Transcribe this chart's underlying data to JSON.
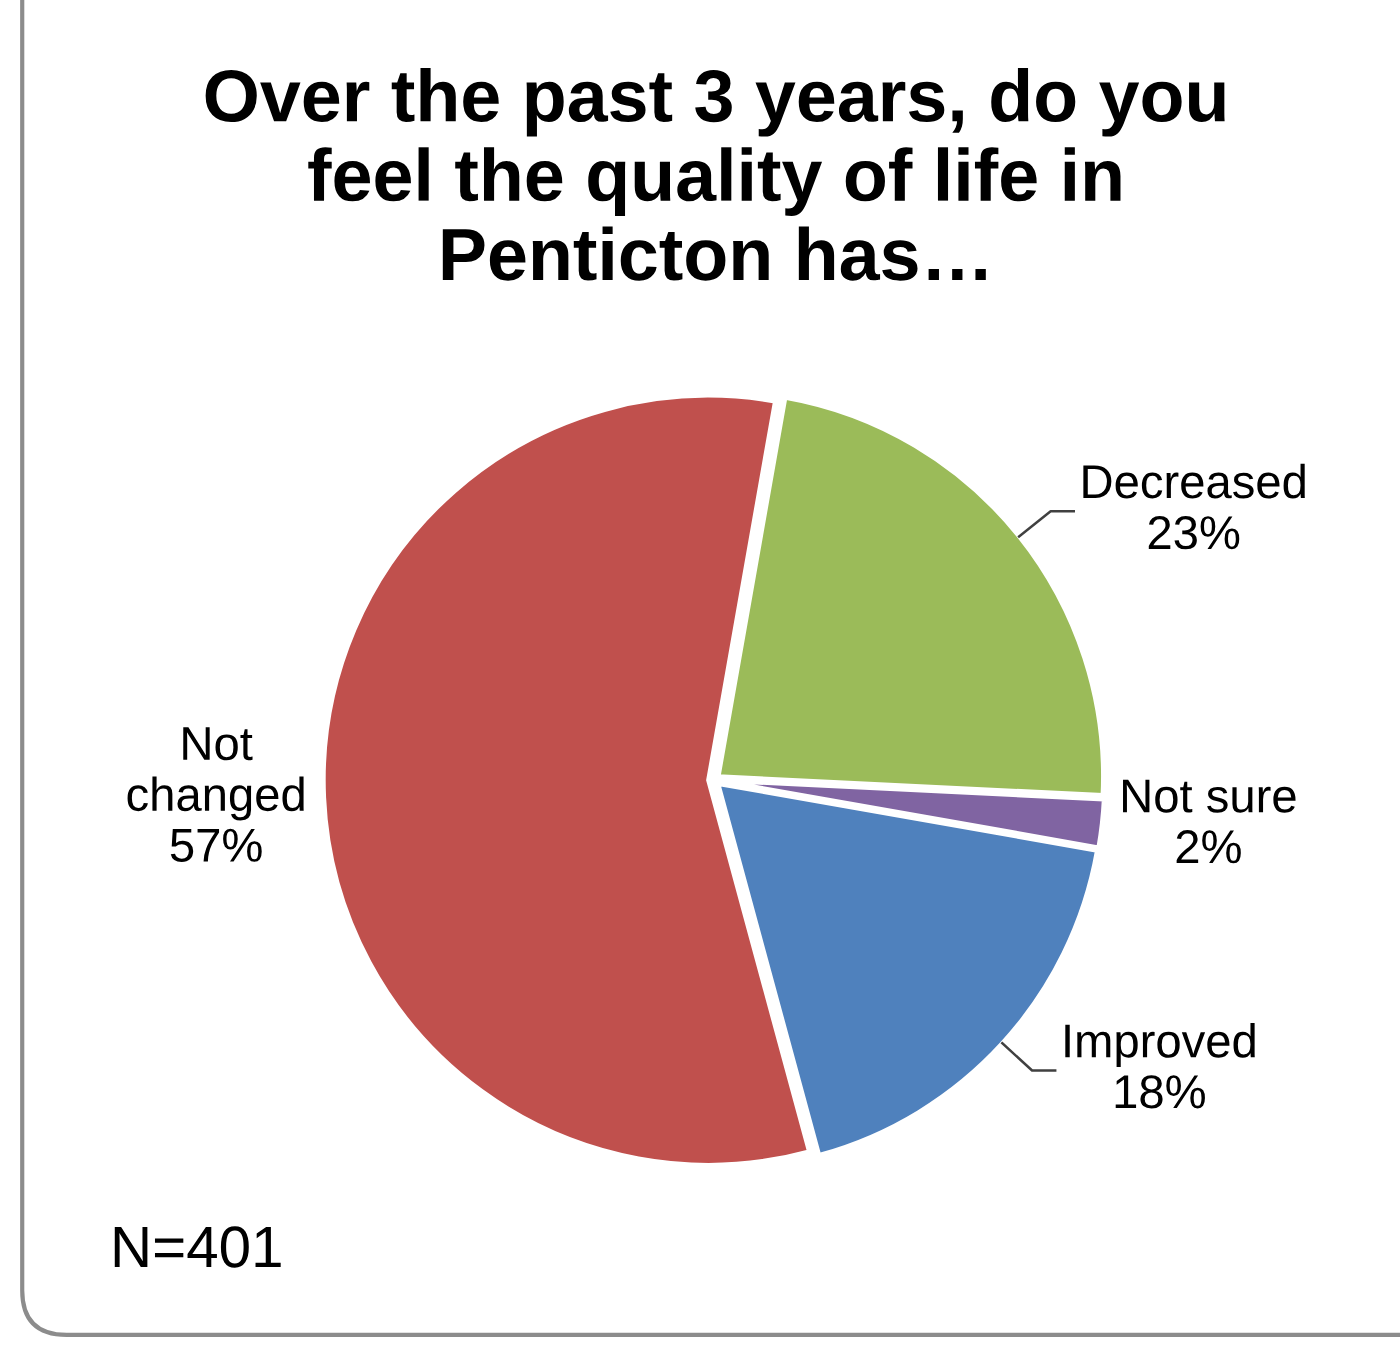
{
  "chart_data": {
    "type": "pie",
    "title": "Over the past 3 years, do you feel the quality of life in Penticton has…",
    "categories": [
      "Decreased",
      "Not sure",
      "Improved",
      "Not changed"
    ],
    "values": [
      23,
      2,
      18,
      57
    ],
    "colors": [
      "#9bbb59",
      "#8064a2",
      "#4f81bd",
      "#c0504d"
    ],
    "value_labels": [
      "23%",
      "2%",
      "18%",
      "57%"
    ],
    "annotations": [
      "N=401"
    ]
  }
}
